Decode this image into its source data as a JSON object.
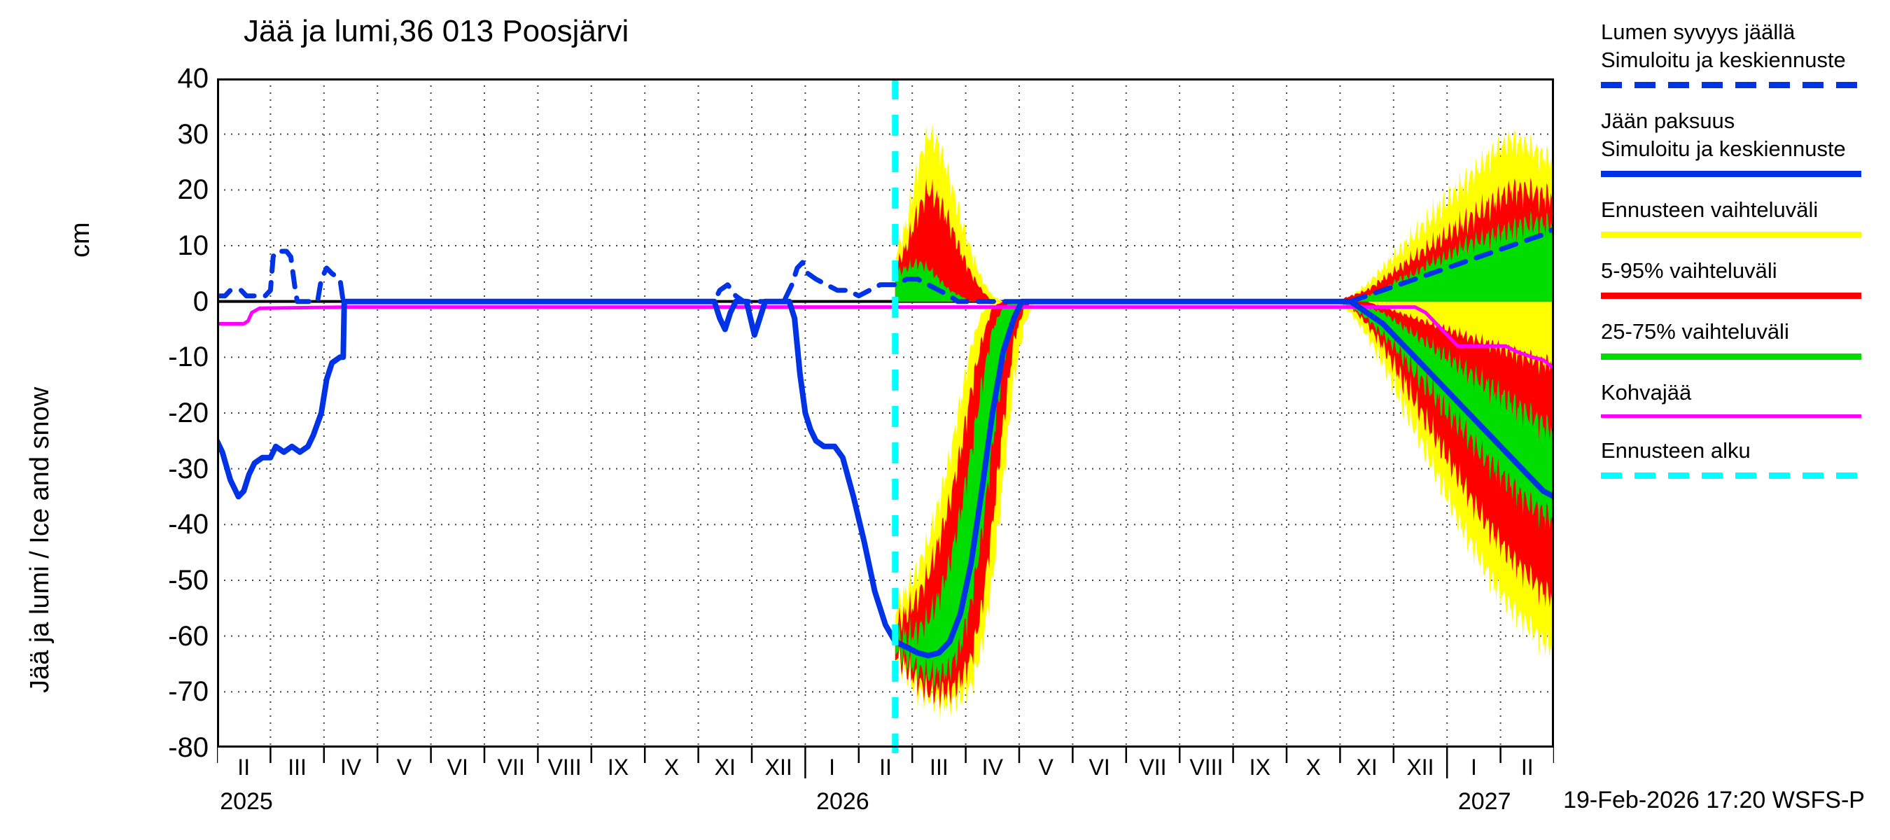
{
  "footer": "19-Feb-2026 17:20 WSFS-P",
  "legend": {
    "items": [
      {
        "name": "snow-depth",
        "lines": [
          "Lumen syvyys jäällä",
          "Simuloitu ja keskiennuste"
        ],
        "color": "#0033e6",
        "style": "dashed",
        "thickness": 9
      },
      {
        "name": "ice-thickness",
        "lines": [
          "Jään paksuus",
          "Simuloitu ja keskiennuste"
        ],
        "color": "#0033e6",
        "style": "solid",
        "thickness": 9
      },
      {
        "name": "forecast-range",
        "lines": [
          "Ennusteen vaihteluväli"
        ],
        "color": "#ffff00",
        "style": "solid",
        "thickness": 9
      },
      {
        "name": "range-5-95",
        "lines": [
          "5-95% vaihteluväli"
        ],
        "color": "#ff0000",
        "style": "solid",
        "thickness": 9
      },
      {
        "name": "range-25-75",
        "lines": [
          "25-75% vaihteluväli"
        ],
        "color": "#00dd00",
        "style": "solid",
        "thickness": 9
      },
      {
        "name": "kohvajaa",
        "lines": [
          "Kohvajää"
        ],
        "color": "#ff00ff",
        "style": "solid",
        "thickness": 5
      },
      {
        "name": "forecast-start",
        "lines": [
          "Ennusteen alku"
        ],
        "color": "#00ffff",
        "style": "dashed",
        "thickness": 9
      }
    ]
  },
  "chart_data": {
    "type": "line",
    "title": "Jää ja lumi,36 013 Poosjärvi",
    "ylabel": "Jää ja lumi / Ice and snow",
    "y_unit": "cm",
    "ylim": [
      -80,
      40
    ],
    "y_ticks": [
      40,
      30,
      20,
      10,
      0,
      -10,
      -20,
      -30,
      -40,
      -50,
      -60,
      -70,
      -80
    ],
    "x_domain_months": 25,
    "x_tick_labels": [
      "II",
      "III",
      "IV",
      "V",
      "VI",
      "VII",
      "VIII",
      "IX",
      "X",
      "XI",
      "XII",
      "I",
      "II",
      "III",
      "IV",
      "V",
      "VI",
      "VII",
      "VIII",
      "IX",
      "X",
      "XI",
      "XII",
      "I",
      "II"
    ],
    "x_years": [
      {
        "label": "2025",
        "t": 0.55
      },
      {
        "label": "2026",
        "t": 11.7
      },
      {
        "label": "2027",
        "t": 23.7
      }
    ],
    "forecast_start_t": 12.68,
    "grid": true,
    "legend_position": "right",
    "colors": {
      "median": "#0033e6",
      "range": "#ffff00",
      "p5_95": "#ff0000",
      "p25_75": "#00dd00",
      "kohvajaa": "#ff00ff",
      "forecast_start": "#00ffff"
    },
    "bands": [
      {
        "name": "snow-range-fc1",
        "color": "#ffff00",
        "clamp": "pos",
        "x": [
          12.68,
          12.9,
          13.1,
          13.3,
          13.5,
          13.7,
          13.9,
          14.1,
          14.3,
          14.5,
          14.7,
          14.9,
          15.1,
          15.3
        ],
        "upper": [
          8,
          14,
          24,
          30,
          28,
          22,
          15,
          9,
          4,
          1,
          0,
          0,
          0,
          0
        ],
        "lower": 0
      },
      {
        "name": "ice-range-fc1",
        "color": "#ffff00",
        "clamp": "neg",
        "x": [
          12.68,
          12.9,
          13.1,
          13.3,
          13.5,
          13.7,
          13.9,
          14.1,
          14.3,
          14.5,
          14.7,
          14.9,
          15.1,
          15.3
        ],
        "upper": [
          -55,
          -52,
          -48,
          -43,
          -36,
          -28,
          -18,
          -8,
          -2,
          0,
          0,
          0,
          0,
          0
        ],
        "lower": [
          -64,
          -67,
          -70,
          -71,
          -72,
          -72,
          -71,
          -69,
          -62,
          -50,
          -32,
          -14,
          -4,
          0
        ]
      },
      {
        "name": "snow-5-95-fc1",
        "color": "#ff0000",
        "clamp": "pos",
        "x": [
          12.68,
          12.9,
          13.1,
          13.3,
          13.5,
          13.7,
          13.9,
          14.1,
          14.3,
          14.5,
          14.7,
          14.9,
          15.1,
          15.3
        ],
        "upper": [
          6,
          10,
          16,
          20,
          18,
          14,
          9,
          5,
          2,
          0,
          0,
          0,
          0,
          0
        ],
        "lower": 0
      },
      {
        "name": "ice-5-95-fc1",
        "color": "#ff0000",
        "clamp": "neg",
        "x": [
          12.68,
          12.9,
          13.1,
          13.3,
          13.5,
          13.7,
          13.9,
          14.1,
          14.3,
          14.5,
          14.7,
          14.9,
          15.1,
          15.3
        ],
        "upper": [
          -58,
          -56,
          -53,
          -49,
          -43,
          -36,
          -27,
          -16,
          -7,
          -1,
          0,
          0,
          0,
          0
        ],
        "lower": [
          -63,
          -66,
          -68,
          -70,
          -70,
          -70,
          -68,
          -64,
          -55,
          -40,
          -22,
          -7,
          -1,
          0
        ]
      },
      {
        "name": "snow-25-75-fc1",
        "color": "#00dd00",
        "clamp": "pos",
        "x": [
          12.68,
          12.9,
          13.1,
          13.3,
          13.5,
          13.7,
          13.9,
          14.1,
          14.3,
          14.5,
          14.7,
          14.9,
          15.1,
          15.3
        ],
        "upper": [
          5,
          6,
          7,
          6,
          4,
          2,
          1,
          0,
          0,
          0,
          0,
          0,
          0,
          0
        ],
        "lower": 0
      },
      {
        "name": "ice-25-75-fc1",
        "color": "#00dd00",
        "clamp": "neg",
        "x": [
          12.68,
          12.9,
          13.1,
          13.3,
          13.5,
          13.7,
          13.9,
          14.1,
          14.3,
          14.5,
          14.7,
          14.9,
          15.1,
          15.3
        ],
        "upper": [
          -60,
          -60,
          -59,
          -57,
          -53,
          -47,
          -38,
          -27,
          -15,
          -5,
          -1,
          0,
          0,
          0
        ],
        "lower": [
          -62,
          -64,
          -66,
          -67,
          -67,
          -66,
          -62,
          -54,
          -42,
          -26,
          -11,
          -2,
          0,
          0
        ]
      },
      {
        "name": "snow-range-fc2",
        "color": "#ffff00",
        "clamp": "pos",
        "x": [
          20.9,
          21.2,
          21.5,
          21.8,
          22.1,
          22.4,
          22.7,
          23.0,
          23.3,
          23.6,
          23.9,
          24.2,
          24.5,
          24.8,
          25.0
        ],
        "upper": [
          0,
          1,
          3,
          6,
          9,
          12,
          15,
          18,
          21,
          24,
          27,
          29,
          28,
          26,
          25
        ],
        "lower": 0
      },
      {
        "name": "ice-range-fc2",
        "color": "#ffff00",
        "clamp": "neg",
        "x": [
          20.9,
          21.2,
          21.5,
          21.8,
          22.1,
          22.4,
          22.7,
          23.0,
          23.3,
          23.6,
          23.9,
          24.2,
          24.5,
          24.8,
          25.0
        ],
        "upper": 0,
        "lower": [
          0,
          -2,
          -6,
          -11,
          -17,
          -23,
          -29,
          -35,
          -41,
          -46,
          -51,
          -55,
          -58,
          -61,
          -62
        ]
      },
      {
        "name": "snow-5-95-fc2",
        "color": "#ff0000",
        "clamp": "pos",
        "x": [
          20.9,
          21.2,
          21.5,
          21.8,
          22.1,
          22.4,
          22.7,
          23.0,
          23.3,
          23.6,
          23.9,
          24.2,
          24.5,
          24.8,
          25.0
        ],
        "upper": [
          0,
          1,
          2,
          4,
          6,
          8,
          10,
          12,
          14,
          16,
          18,
          20,
          20,
          19,
          19
        ],
        "lower": 0
      },
      {
        "name": "ice-5-95-fc2",
        "color": "#ff0000",
        "clamp": "neg",
        "x": [
          20.9,
          21.2,
          21.5,
          21.8,
          22.1,
          22.4,
          22.7,
          23.0,
          23.3,
          23.6,
          23.9,
          24.2,
          24.5,
          24.8,
          25.0
        ],
        "upper": [
          0,
          0,
          0,
          -1,
          -2,
          -3,
          -4,
          -5,
          -6,
          -7,
          -8,
          -9,
          -10,
          -11,
          -11
        ],
        "lower": [
          0,
          -1,
          -4,
          -8,
          -13,
          -18,
          -23,
          -28,
          -33,
          -38,
          -42,
          -46,
          -49,
          -52,
          -53
        ]
      },
      {
        "name": "snow-25-75-fc2",
        "color": "#00dd00",
        "clamp": "pos",
        "x": [
          20.9,
          21.2,
          21.5,
          21.8,
          22.1,
          22.4,
          22.7,
          23.0,
          23.3,
          23.6,
          23.9,
          24.2,
          24.5,
          24.8,
          25.0
        ],
        "upper": [
          0,
          0,
          1,
          2,
          4,
          5,
          7,
          8,
          10,
          11,
          12,
          13,
          14,
          14,
          14
        ],
        "lower": 0
      },
      {
        "name": "ice-25-75-fc2",
        "color": "#00dd00",
        "clamp": "neg",
        "x": [
          20.9,
          21.2,
          21.5,
          21.8,
          22.1,
          22.4,
          22.7,
          23.0,
          23.3,
          23.6,
          23.9,
          24.2,
          24.5,
          24.8,
          25.0
        ],
        "upper": [
          0,
          0,
          -1,
          -2,
          -4,
          -6,
          -8,
          -10,
          -12,
          -14,
          -16,
          -18,
          -20,
          -22,
          -23
        ],
        "lower": [
          0,
          -1,
          -3,
          -6,
          -9,
          -13,
          -16,
          -20,
          -23,
          -27,
          -30,
          -33,
          -36,
          -38,
          -39
        ]
      }
    ],
    "lines": [
      {
        "name": "kohvajaa",
        "color": "#ff00ff",
        "width": 5,
        "points": [
          [
            0,
            -4
          ],
          [
            0.5,
            -4
          ],
          [
            0.58,
            -3.5
          ],
          [
            0.65,
            -2
          ],
          [
            0.8,
            -1.2
          ],
          [
            2.5,
            -1
          ],
          [
            12.68,
            -1
          ],
          [
            22.4,
            -1
          ],
          [
            22.6,
            -2
          ],
          [
            22.8,
            -4
          ],
          [
            23.0,
            -6
          ],
          [
            23.2,
            -8
          ],
          [
            24.1,
            -8
          ],
          [
            24.3,
            -9
          ],
          [
            24.6,
            -10
          ],
          [
            24.8,
            -10.5
          ],
          [
            25,
            -12
          ]
        ]
      },
      {
        "name": "ice-thickness-median",
        "color": "#0033e6",
        "width": 8,
        "points": [
          [
            0,
            -25
          ],
          [
            0.1,
            -27
          ],
          [
            0.25,
            -32
          ],
          [
            0.4,
            -35
          ],
          [
            0.5,
            -34
          ],
          [
            0.6,
            -31
          ],
          [
            0.7,
            -29
          ],
          [
            0.85,
            -28
          ],
          [
            1.0,
            -28
          ],
          [
            1.1,
            -26
          ],
          [
            1.25,
            -27
          ],
          [
            1.4,
            -26
          ],
          [
            1.55,
            -27
          ],
          [
            1.7,
            -26
          ],
          [
            1.8,
            -24
          ],
          [
            1.95,
            -20
          ],
          [
            2.05,
            -14
          ],
          [
            2.15,
            -11
          ],
          [
            2.3,
            -10
          ],
          [
            2.36,
            -10
          ],
          [
            2.38,
            0
          ],
          [
            9.3,
            0
          ],
          [
            9.4,
            -3
          ],
          [
            9.5,
            -5
          ],
          [
            9.6,
            -2
          ],
          [
            9.7,
            0
          ],
          [
            9.9,
            0
          ],
          [
            10.0,
            -4
          ],
          [
            10.05,
            -6
          ],
          [
            10.15,
            -3
          ],
          [
            10.25,
            0
          ],
          [
            10.7,
            0
          ],
          [
            10.8,
            -3
          ],
          [
            10.9,
            -13
          ],
          [
            11.0,
            -20
          ],
          [
            11.1,
            -23
          ],
          [
            11.2,
            -25
          ],
          [
            11.35,
            -26
          ],
          [
            11.55,
            -26
          ],
          [
            11.7,
            -28
          ],
          [
            11.9,
            -35
          ],
          [
            12.1,
            -43
          ],
          [
            12.3,
            -52
          ],
          [
            12.5,
            -58
          ],
          [
            12.68,
            -61
          ],
          [
            12.9,
            -62
          ],
          [
            13.1,
            -63
          ],
          [
            13.3,
            -63.5
          ],
          [
            13.5,
            -63
          ],
          [
            13.7,
            -61
          ],
          [
            13.9,
            -56
          ],
          [
            14.1,
            -47
          ],
          [
            14.3,
            -34
          ],
          [
            14.5,
            -20
          ],
          [
            14.7,
            -9
          ],
          [
            14.9,
            -3
          ],
          [
            15.05,
            0
          ],
          [
            20.9,
            0
          ],
          [
            21.2,
            0
          ],
          [
            21.5,
            -2
          ],
          [
            21.8,
            -4
          ],
          [
            22.1,
            -7
          ],
          [
            22.4,
            -10
          ],
          [
            22.7,
            -13
          ],
          [
            23.0,
            -16
          ],
          [
            23.3,
            -19
          ],
          [
            23.6,
            -22
          ],
          [
            23.9,
            -25
          ],
          [
            24.2,
            -28
          ],
          [
            24.5,
            -31
          ],
          [
            24.8,
            -34
          ],
          [
            25,
            -35
          ]
        ]
      },
      {
        "name": "snow-depth-median",
        "color": "#0033e6",
        "width": 7,
        "dash": "22 16",
        "points": [
          [
            0,
            1
          ],
          [
            0.15,
            1
          ],
          [
            0.25,
            2
          ],
          [
            0.45,
            2
          ],
          [
            0.55,
            1
          ],
          [
            0.9,
            1
          ],
          [
            1.0,
            2
          ],
          [
            1.05,
            8
          ],
          [
            1.1,
            9
          ],
          [
            1.3,
            9
          ],
          [
            1.38,
            8
          ],
          [
            1.45,
            3
          ],
          [
            1.5,
            0
          ],
          [
            1.88,
            0
          ],
          [
            1.95,
            4
          ],
          [
            2.05,
            6
          ],
          [
            2.15,
            5
          ],
          [
            2.3,
            4
          ],
          [
            2.36,
            0
          ],
          [
            9.3,
            0
          ],
          [
            9.4,
            2
          ],
          [
            9.55,
            3
          ],
          [
            9.7,
            1
          ],
          [
            9.85,
            0
          ],
          [
            10.6,
            0
          ],
          [
            10.75,
            3
          ],
          [
            10.85,
            6
          ],
          [
            10.95,
            7
          ],
          [
            11.05,
            5
          ],
          [
            11.2,
            4
          ],
          [
            11.4,
            3
          ],
          [
            11.6,
            2
          ],
          [
            11.8,
            2
          ],
          [
            12.0,
            1
          ],
          [
            12.2,
            2
          ],
          [
            12.4,
            3
          ],
          [
            12.68,
            3
          ],
          [
            12.9,
            4
          ],
          [
            13.1,
            4
          ],
          [
            13.3,
            3
          ],
          [
            13.5,
            2
          ],
          [
            13.7,
            1
          ],
          [
            13.85,
            0
          ],
          [
            20.9,
            0
          ],
          [
            21.2,
            0
          ],
          [
            21.5,
            1
          ],
          [
            21.8,
            2
          ],
          [
            22.1,
            3
          ],
          [
            22.4,
            4
          ],
          [
            22.7,
            5
          ],
          [
            23.0,
            6
          ],
          [
            23.3,
            7
          ],
          [
            23.6,
            8
          ],
          [
            23.9,
            9
          ],
          [
            24.2,
            10
          ],
          [
            24.5,
            11
          ],
          [
            24.8,
            12
          ],
          [
            25,
            13
          ]
        ]
      }
    ]
  }
}
